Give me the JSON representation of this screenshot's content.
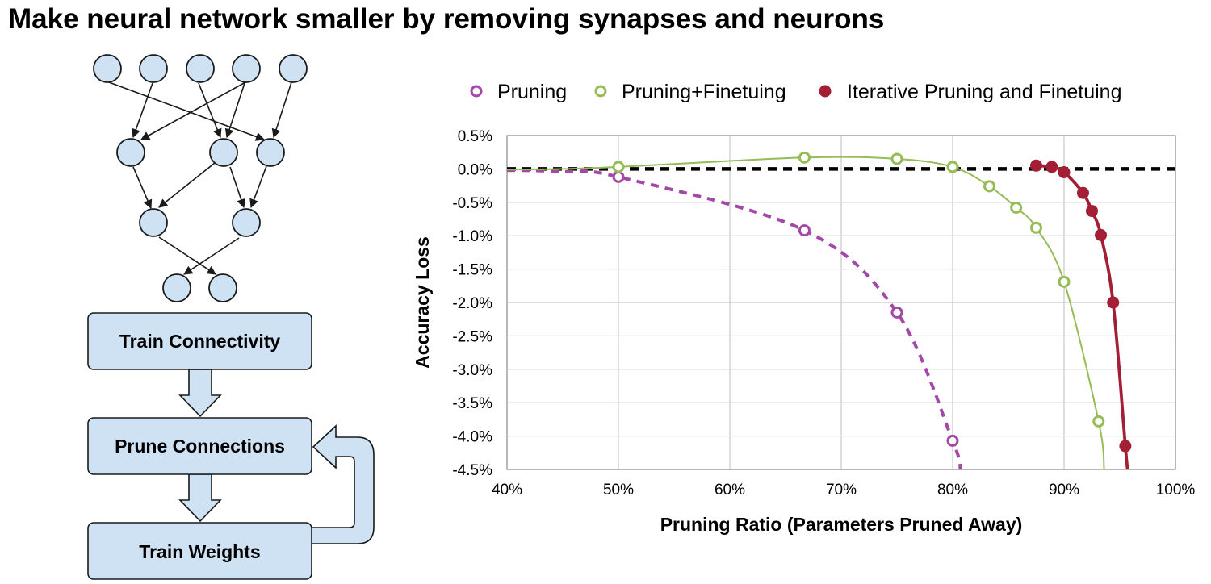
{
  "title": "Make neural network smaller by removing synapses and neurons",
  "flow": {
    "steps": [
      "Train Connectivity",
      "Prune Connections",
      "Train Weights"
    ]
  },
  "colors": {
    "node_fill": "#cfe2f3",
    "box_fill": "#cfe2f3",
    "outline": "#1a1a1a",
    "pruning": "#a348a8",
    "finetuning": "#95bc55",
    "iterative": "#a31f35",
    "baseline": "#000000"
  },
  "chart_data": {
    "type": "line",
    "title": "",
    "xlabel": "Pruning Ratio (Parameters Pruned Away)",
    "ylabel": "Accuracy Loss",
    "xlim": [
      40,
      100
    ],
    "ylim": [
      -4.5,
      0.5
    ],
    "x_ticks": [
      "40%",
      "50%",
      "60%",
      "70%",
      "80%",
      "90%",
      "100%"
    ],
    "y_ticks": [
      "0.5%",
      "0.0%",
      "-0.5%",
      "-1.0%",
      "-1.5%",
      "-2.0%",
      "-2.5%",
      "-3.0%",
      "-3.5%",
      "-4.0%",
      "-4.5%"
    ],
    "grid": true,
    "legend_position": "top",
    "series": [
      {
        "name": "Pruning",
        "style": "dashed, open markers",
        "points": [
          [
            50,
            -0.12
          ],
          [
            66.7,
            -0.92
          ],
          [
            75,
            -2.15
          ],
          [
            80,
            -4.07
          ]
        ]
      },
      {
        "name": "Pruning+Finetuing",
        "style": "solid, open markers",
        "points": [
          [
            50,
            0.03
          ],
          [
            66.7,
            0.17
          ],
          [
            75,
            0.15
          ],
          [
            80,
            0.03
          ],
          [
            83.3,
            -0.26
          ],
          [
            85.7,
            -0.58
          ],
          [
            87.5,
            -0.88
          ],
          [
            90,
            -1.69
          ],
          [
            93.1,
            -3.78
          ]
        ]
      },
      {
        "name": "Iterative Pruning and Finetuing",
        "style": "solid, filled markers",
        "points": [
          [
            87.5,
            0.05
          ],
          [
            88.9,
            0.03
          ],
          [
            90,
            -0.05
          ],
          [
            91.7,
            -0.36
          ],
          [
            92.5,
            -0.63
          ],
          [
            93.3,
            -0.99
          ],
          [
            94.4,
            -2.0
          ],
          [
            95.5,
            -4.15
          ]
        ]
      }
    ],
    "baseline": 0.0
  }
}
